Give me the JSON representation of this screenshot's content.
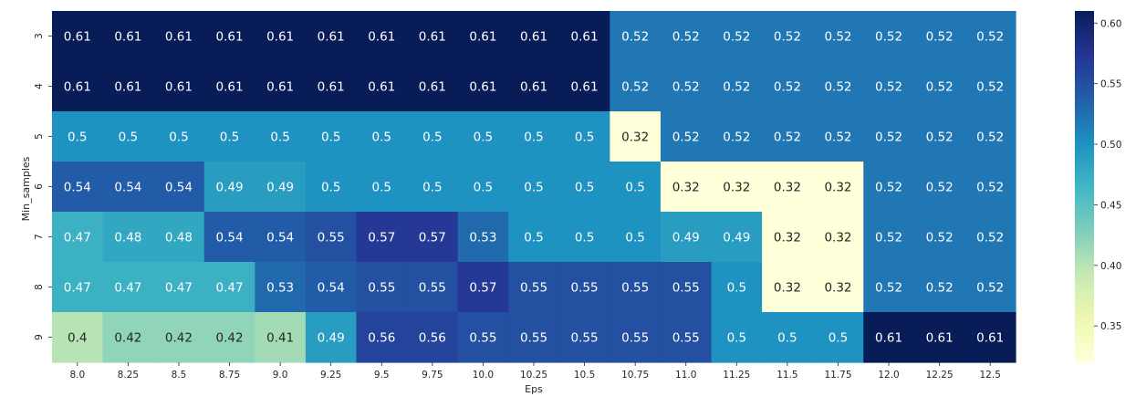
{
  "chart_data": {
    "type": "heatmap",
    "title": "",
    "xlabel": "Eps",
    "ylabel": "Min_samples",
    "x_categories": [
      "8.0",
      "8.25",
      "8.5",
      "8.75",
      "9.0",
      "9.25",
      "9.5",
      "9.75",
      "10.0",
      "10.25",
      "10.5",
      "10.75",
      "11.0",
      "11.25",
      "11.5",
      "11.75",
      "12.0",
      "12.25",
      "12.5"
    ],
    "y_categories": [
      "3",
      "4",
      "5",
      "6",
      "7",
      "8",
      "9"
    ],
    "values": [
      [
        0.61,
        0.61,
        0.61,
        0.61,
        0.61,
        0.61,
        0.61,
        0.61,
        0.61,
        0.61,
        0.61,
        0.52,
        0.52,
        0.52,
        0.52,
        0.52,
        0.52,
        0.52,
        0.52
      ],
      [
        0.61,
        0.61,
        0.61,
        0.61,
        0.61,
        0.61,
        0.61,
        0.61,
        0.61,
        0.61,
        0.61,
        0.52,
        0.52,
        0.52,
        0.52,
        0.52,
        0.52,
        0.52,
        0.52
      ],
      [
        0.5,
        0.5,
        0.5,
        0.5,
        0.5,
        0.5,
        0.5,
        0.5,
        0.5,
        0.5,
        0.5,
        0.32,
        0.52,
        0.52,
        0.52,
        0.52,
        0.52,
        0.52,
        0.52
      ],
      [
        0.54,
        0.54,
        0.54,
        0.49,
        0.49,
        0.5,
        0.5,
        0.5,
        0.5,
        0.5,
        0.5,
        0.5,
        0.32,
        0.32,
        0.32,
        0.32,
        0.52,
        0.52,
        0.52
      ],
      [
        0.47,
        0.48,
        0.48,
        0.54,
        0.54,
        0.55,
        0.57,
        0.57,
        0.53,
        0.5,
        0.5,
        0.5,
        0.49,
        0.49,
        0.32,
        0.32,
        0.52,
        0.52,
        0.52
      ],
      [
        0.47,
        0.47,
        0.47,
        0.47,
        0.53,
        0.54,
        0.55,
        0.55,
        0.57,
        0.55,
        0.55,
        0.55,
        0.55,
        0.5,
        0.32,
        0.32,
        0.52,
        0.52,
        0.52
      ],
      [
        0.4,
        0.42,
        0.42,
        0.42,
        0.41,
        0.49,
        0.56,
        0.56,
        0.55,
        0.55,
        0.55,
        0.55,
        0.55,
        0.5,
        0.5,
        0.5,
        0.61,
        0.61,
        0.61
      ]
    ],
    "colormap": "YlGnBu",
    "vmin": 0.32,
    "vmax": 0.61,
    "colorbar_ticks": [
      "0.35",
      "0.40",
      "0.45",
      "0.50",
      "0.55",
      "0.60"
    ],
    "annotations": true,
    "grid": false,
    "legend": "colorbar-right"
  }
}
